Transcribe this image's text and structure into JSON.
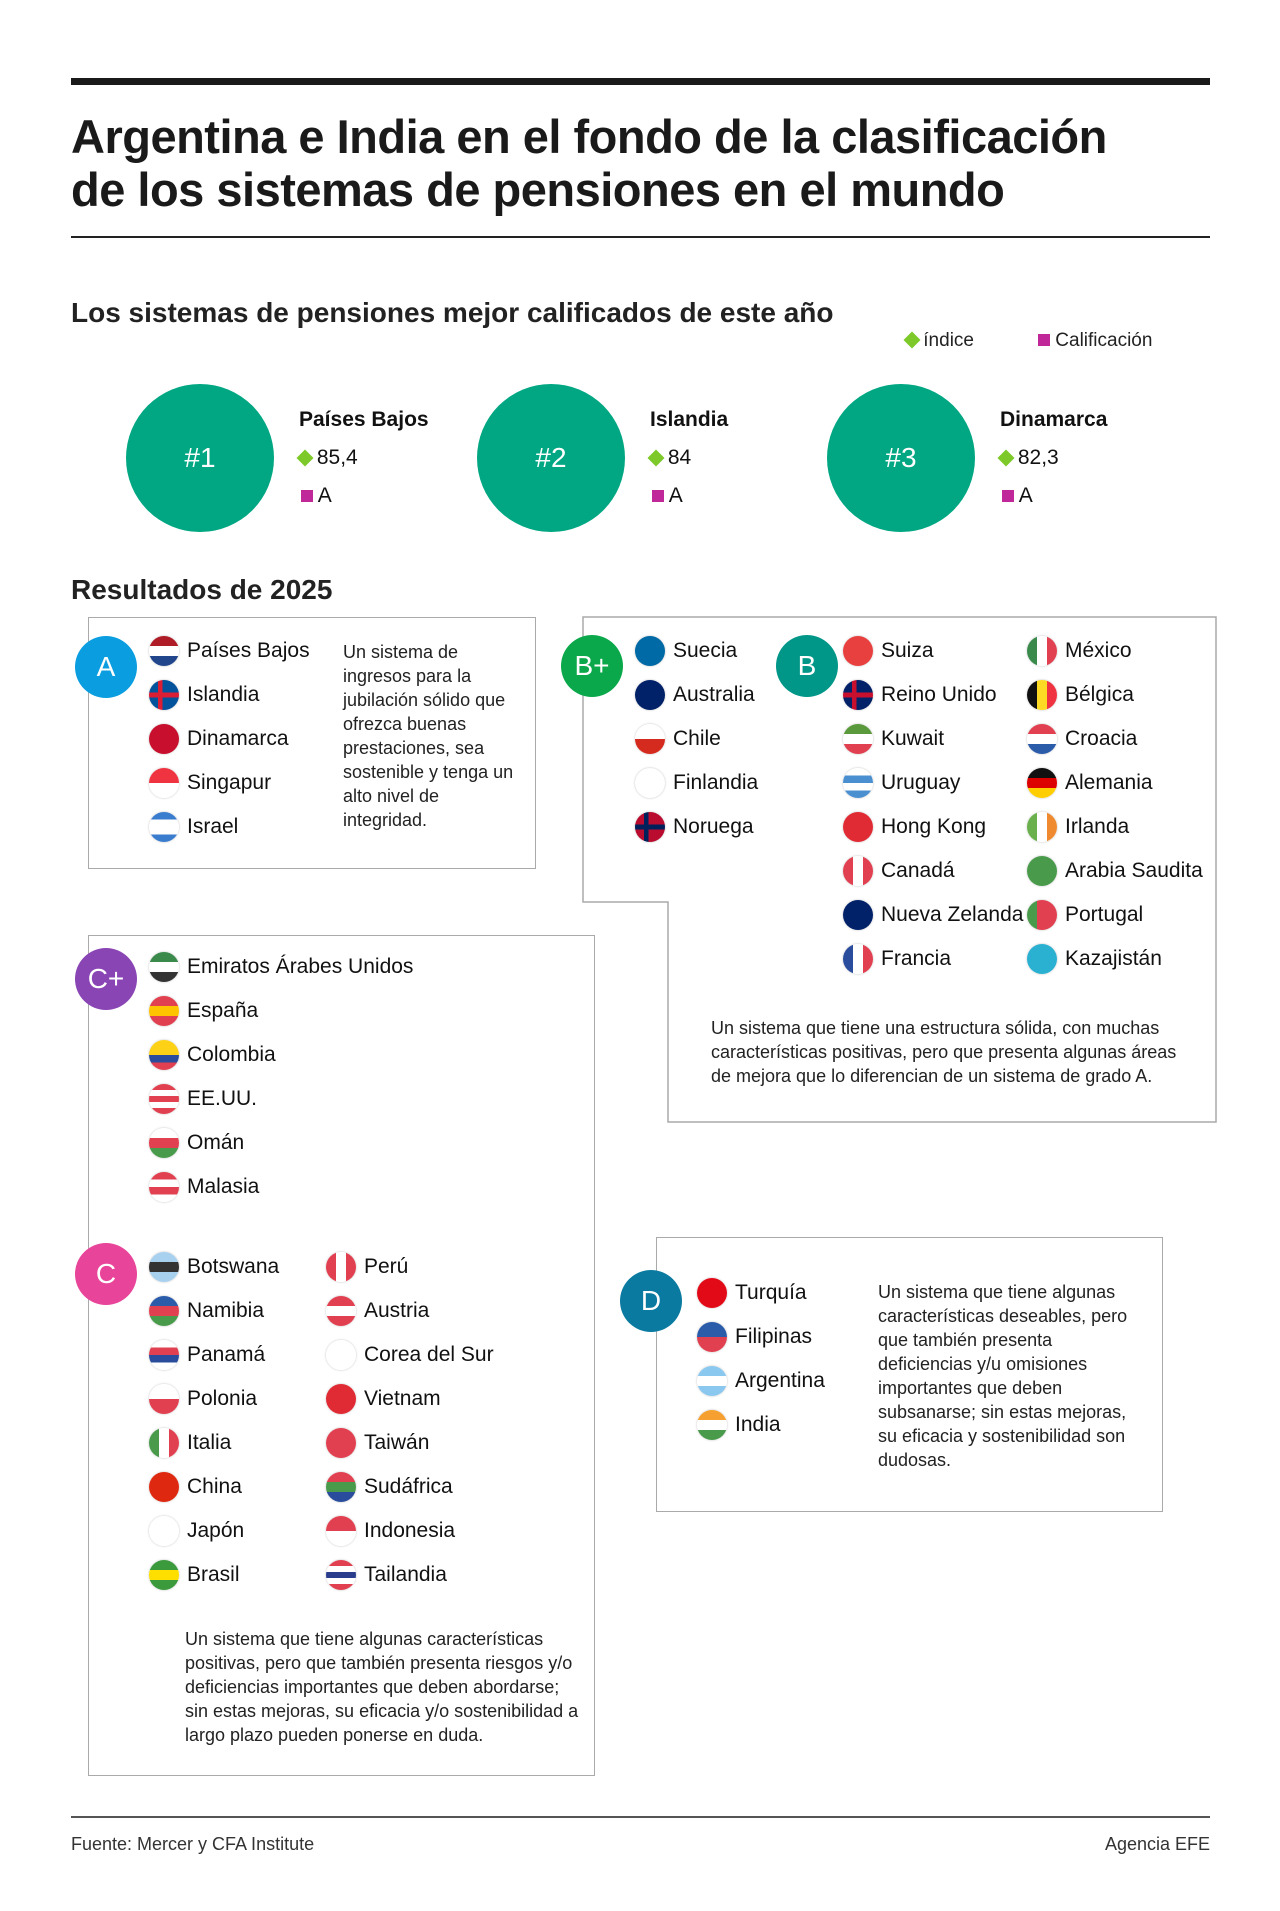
{
  "title": [
    "Argentina e India en el fondo de la clasificación",
    "de los sistemas de pensiones en el mundo"
  ],
  "subtitle": "Los sistemas de pensiones mejor calificados de este año",
  "legend": {
    "index_label": "índice",
    "rating_label": "Calificación",
    "index_color": "#7dc92a",
    "rating_color": "#c0289a"
  },
  "top3": [
    {
      "rank": "#1",
      "country": "Países Bajos",
      "index": "85,4",
      "rating": "A"
    },
    {
      "rank": "#2",
      "country": "Islandia",
      "index": "84",
      "rating": "A"
    },
    {
      "rank": "#3",
      "country": "Dinamarca",
      "index": "82,3",
      "rating": "A"
    }
  ],
  "results_title": "Resultados de 2025",
  "grades": {
    "A": {
      "label": "A",
      "color": "#0a9de0",
      "description": "Un sistema de ingresos para la jubilación sólido que ofrezca buenas prestaciones, sea sostenible y tenga un alto nivel de integridad.",
      "countries": [
        [
          "Países Bajos",
          "h",
          "#ae1c28,#fff,#21468b"
        ],
        [
          "Islandia",
          "c",
          "#02529c,#fff,#dc1e35"
        ],
        [
          "Dinamarca",
          "c",
          "#c8102e,#fff,#c8102e"
        ],
        [
          "Singapur",
          "h",
          "#ef3340,#fff"
        ],
        [
          "Israel",
          "h",
          "#3a7dce,#fff,#fff,#3a7dce"
        ]
      ]
    },
    "Bplus": {
      "label": "B+",
      "color": "#0aa84a",
      "countries": [
        [
          "Suecia",
          "c",
          "#006aa7,#fecc00,#006aa7"
        ],
        [
          "Australia",
          "h",
          "#012169,#012169"
        ],
        [
          "Chile",
          "h",
          "#fff,#d52b1e"
        ],
        [
          "Finlandia",
          "c",
          "#fff,#4a8fd0,#fff"
        ],
        [
          "Noruega",
          "c",
          "#ba0c2f,#fff,#00205b"
        ]
      ]
    },
    "B": {
      "label": "B",
      "color": "#009688",
      "description": "Un sistema que tiene una estructura sólida, con muchas características positivas, pero que presenta algunas áreas de mejora que lo diferencian de un sistema de grado A.",
      "countries": [
        [
          "Suiza",
          "h",
          "#e8403f,#e8403f"
        ],
        [
          "Reino Unido",
          "c",
          "#012169,#fff,#c8102e"
        ],
        [
          "Kuwait",
          "h",
          "#5a9a3c,#fff,#e04050"
        ],
        [
          "Uruguay",
          "h",
          "#fff,#4a8fd0,#fff,#4a8fd0"
        ],
        [
          "Hong Kong",
          "h",
          "#e02b35,#e02b35"
        ],
        [
          "Canadá",
          "v",
          "#e04050,#fff,#e04050"
        ],
        [
          "Nueva Zelanda",
          "h",
          "#012169,#012169"
        ],
        [
          "Francia",
          "v",
          "#2a4c9c,#fff,#e04050"
        ],
        [
          "México",
          "v",
          "#3a8a4c,#fff,#e04050"
        ],
        [
          "Bélgica",
          "v",
          "#111,#fdda24,#ef3340"
        ],
        [
          "Croacia",
          "h",
          "#e04050,#fff,#2a5caa"
        ],
        [
          "Alemania",
          "h",
          "#111,#dd0000,#ffce00"
        ],
        [
          "Irlanda",
          "v",
          "#6ab04c,#fff,#f08a30"
        ],
        [
          "Arabia Saudita",
          "h",
          "#4a9a4c,#4a9a4c"
        ],
        [
          "Portugal",
          "v",
          "#4a9a4c,#e04050,#e04050"
        ],
        [
          "Kazajistán",
          "h",
          "#2ab0d0,#2ab0d0"
        ]
      ]
    },
    "Cplus": {
      "label": "C+",
      "color": "#8a45b5",
      "countries": [
        [
          "Emiratos Árabes Unidos",
          "h",
          "#3a8a4c,#fff,#333"
        ],
        [
          "España",
          "h",
          "#e04050,#ffc400,#e04050"
        ],
        [
          "Colombia",
          "h",
          "#fcd116,#fcd116,#2a4c9c,#e04050"
        ],
        [
          "EE.UU.",
          "h",
          "#e04050,#fff,#e04050,#fff,#e04050"
        ],
        [
          "Omán",
          "h",
          "#fff,#e04050,#4a9a4c"
        ],
        [
          "Malasia",
          "h",
          "#e04050,#fff,#e04050,#fff"
        ]
      ]
    },
    "C": {
      "label": "C",
      "color": "#e8449a",
      "description": "Un sistema que tiene algunas características positivas, pero que también presenta riesgos y/o deficiencias importantes que deben abordarse; sin estas mejoras, su eficacia y/o sostenibilidad a largo plazo pueden ponerse en duda.",
      "countries": [
        [
          "Botswana",
          "h",
          "#a8d0ef,#333,#a8d0ef"
        ],
        [
          "Namibia",
          "h",
          "#2a5caa,#e04050,#4a9a4c"
        ],
        [
          "Panamá",
          "h",
          "#fff,#e04050,#2a4c9c,#fff"
        ],
        [
          "Polonia",
          "h",
          "#fff,#e04050"
        ],
        [
          "Italia",
          "v",
          "#4a9a4c,#fff,#e04050"
        ],
        [
          "China",
          "h",
          "#de2910,#de2910"
        ],
        [
          "Japón",
          "h",
          "#fff,#fff"
        ],
        [
          "Brasil",
          "h",
          "#3a9a3c,#fedf00,#3a9a3c"
        ],
        [
          "Perú",
          "v",
          "#e04050,#fff,#e04050"
        ],
        [
          "Austria",
          "h",
          "#e04050,#fff,#e04050"
        ],
        [
          "Corea del Sur",
          "h",
          "#fff,#fff"
        ],
        [
          "Vietnam",
          "h",
          "#e02b35,#e02b35"
        ],
        [
          "Taiwán",
          "h",
          "#e04050,#e04050"
        ],
        [
          "Sudáfrica",
          "h",
          "#e04050,#4a9a4c,#2a4c9c"
        ],
        [
          "Indonesia",
          "h",
          "#e04050,#fff"
        ],
        [
          "Tailandia",
          "h",
          "#e04050,#fff,#2a3c8c,#fff,#e04050"
        ]
      ]
    },
    "D": {
      "label": "D",
      "color": "#0a7aa0",
      "description": "Un sistema que tiene algunas características deseables, pero que también presenta deficiencias y/u omisiones importantes que deben subsanarse; sin estas mejoras, su eficacia y sostenibilidad son dudosas.",
      "countries": [
        [
          "Turquía",
          "h",
          "#e30a17,#e30a17"
        ],
        [
          "Filipinas",
          "h",
          "#2a5caa,#e04050"
        ],
        [
          "Argentina",
          "h",
          "#8ac8ef,#fff,#8ac8ef"
        ],
        [
          "India",
          "h",
          "#f5a030,#fff,#4a9a4c"
        ]
      ]
    }
  },
  "footer": {
    "source": "Fuente: Mercer y CFA Institute",
    "agency": "Agencia EFE"
  }
}
